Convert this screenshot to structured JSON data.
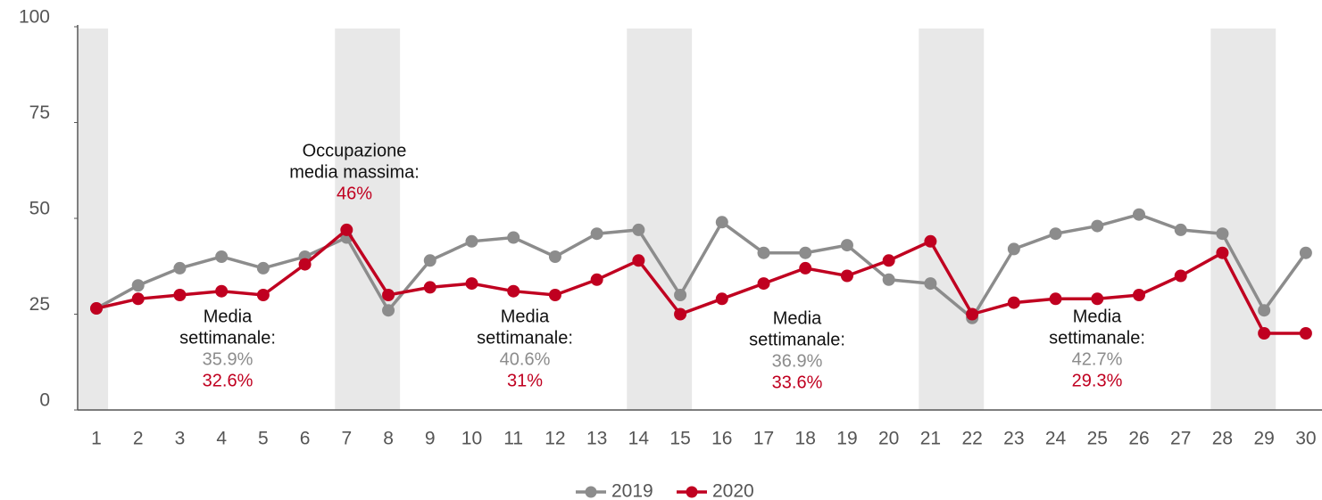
{
  "chart_data": {
    "type": "line",
    "categories": [
      "1",
      "2",
      "3",
      "4",
      "5",
      "6",
      "7",
      "8",
      "9",
      "10",
      "11",
      "12",
      "13",
      "14",
      "15",
      "16",
      "17",
      "18",
      "19",
      "20",
      "21",
      "22",
      "23",
      "24",
      "25",
      "26",
      "27",
      "28",
      "29",
      "30"
    ],
    "series": [
      {
        "name": "2019",
        "color": "#8c8c8c",
        "values": [
          26.5,
          32.5,
          37,
          40,
          37,
          40,
          45,
          26,
          39,
          44,
          45,
          40,
          46,
          47,
          30,
          49,
          41,
          41,
          43,
          34,
          33,
          24,
          42,
          46,
          48,
          51,
          47,
          46,
          26,
          41
        ]
      },
      {
        "name": "2020",
        "color": "#c00020",
        "values": [
          26.5,
          29,
          30,
          31,
          30,
          38,
          47,
          30,
          32,
          33,
          31,
          30,
          34,
          39,
          25,
          29,
          33,
          37,
          35,
          39,
          44,
          25,
          28,
          29,
          29,
          30,
          35,
          41,
          20,
          20
        ]
      }
    ],
    "ylim": [
      0,
      100
    ],
    "yticks": [
      0,
      25,
      50,
      75,
      100
    ],
    "shaded_categories": [
      "1",
      "7",
      "8",
      "14",
      "15",
      "21",
      "22",
      "28",
      "29"
    ],
    "legend": "bottom",
    "annotations": [
      {
        "lines": [
          "Occupazione",
          "media massima:"
        ],
        "labels": [
          "46%"
        ]
      },
      {
        "lines": [
          "Media",
          "settimanale:"
        ],
        "labels": [
          "35.9%",
          "32.6%"
        ]
      },
      {
        "lines": [
          "Media",
          "settimanale:"
        ],
        "labels": [
          "40.6%",
          "31%"
        ]
      },
      {
        "lines": [
          "Media",
          "settimanale:"
        ],
        "labels": [
          "36.9%",
          "33.6%"
        ]
      },
      {
        "lines": [
          "Media",
          "settimanale:"
        ],
        "labels": [
          "42.7%",
          "29.3%"
        ]
      }
    ]
  }
}
